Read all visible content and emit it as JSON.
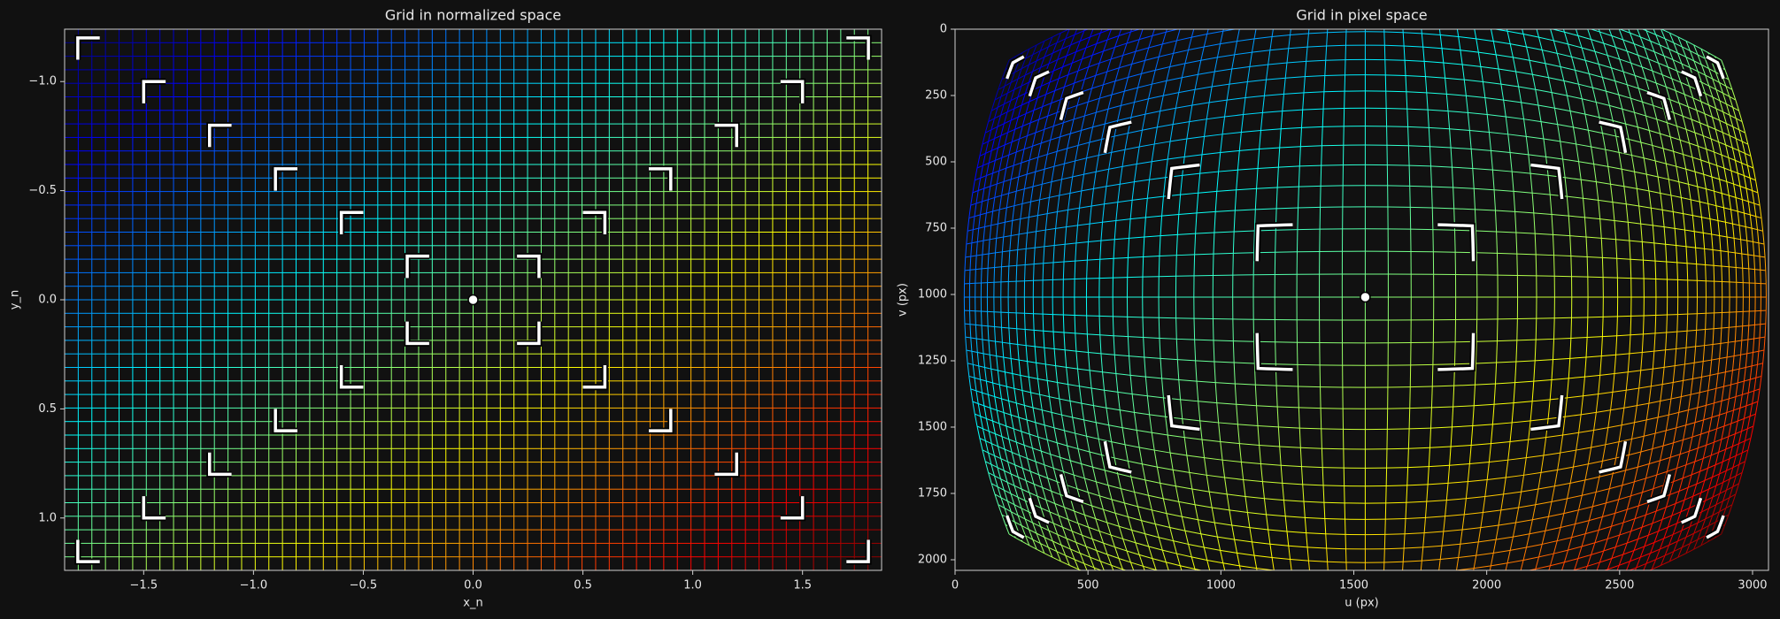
{
  "chart_data": [
    {
      "type": "grid",
      "title": "Grid in normalized space",
      "xlabel": "x_n",
      "ylabel": "y_n",
      "xlim": [
        -1.86,
        1.86
      ],
      "ylim": [
        1.24,
        -1.24
      ],
      "xticks": [
        {
          "value": -1.5,
          "label": "−1.5"
        },
        {
          "value": -1.0,
          "label": "−1.0"
        },
        {
          "value": -0.5,
          "label": "−0.5"
        },
        {
          "value": 0,
          "label": "0.0"
        },
        0.5,
        {
          "value": 1,
          "label": "1.0"
        },
        1.5
      ],
      "yticks": [
        {
          "value": -1.0,
          "label": "−1.0"
        },
        {
          "value": -0.5,
          "label": "−0.5"
        },
        {
          "value": 0,
          "label": "0.0"
        },
        0.5,
        {
          "value": 1,
          "label": "1.0"
        }
      ]
    },
    {
      "type": "grid",
      "title": "Grid in pixel space",
      "xlabel": "u (px)",
      "ylabel": "v (px)",
      "xlim": [
        0,
        3060
      ],
      "ylim": [
        2040,
        0
      ],
      "xticks": [
        0,
        500,
        1000,
        1500,
        2000,
        2500,
        3000
      ],
      "yticks": [
        0,
        250,
        500,
        750,
        1000,
        1250,
        1500,
        1750,
        2000
      ]
    }
  ]
}
